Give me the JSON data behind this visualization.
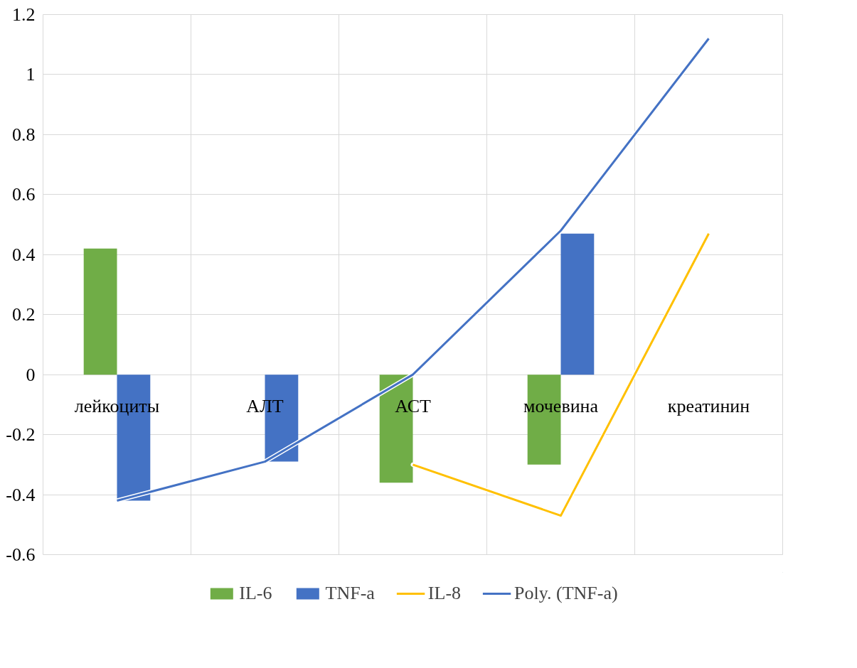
{
  "chart_data": {
    "type": "bar",
    "categories": [
      "лейкоциты",
      "АЛТ",
      "АСТ",
      "мочевина",
      "креатинин"
    ],
    "series": [
      {
        "name": "IL-6",
        "color": "#70ad47",
        "values": [
          0.42,
          null,
          -0.36,
          -0.3,
          null
        ]
      },
      {
        "name": "TNF-a",
        "color": "#4472c4",
        "values": [
          -0.42,
          -0.29,
          null,
          0.47,
          null
        ]
      },
      {
        "name": "IL-8",
        "type": "line",
        "color": "#ffc000",
        "values": [
          null,
          null,
          -0.3,
          -0.47,
          0.47
        ]
      },
      {
        "name": "Poly. (TNF-a)",
        "type": "line",
        "color": "#4472c4",
        "values": [
          -0.42,
          -0.29,
          0.0,
          0.48,
          1.12
        ]
      }
    ],
    "ylim": [
      -0.6,
      1.2
    ],
    "yticks": [
      -0.6,
      -0.4,
      -0.2,
      0,
      0.2,
      0.4,
      0.6,
      0.8,
      1,
      1.2
    ],
    "grid": true,
    "legend": "bottom"
  }
}
